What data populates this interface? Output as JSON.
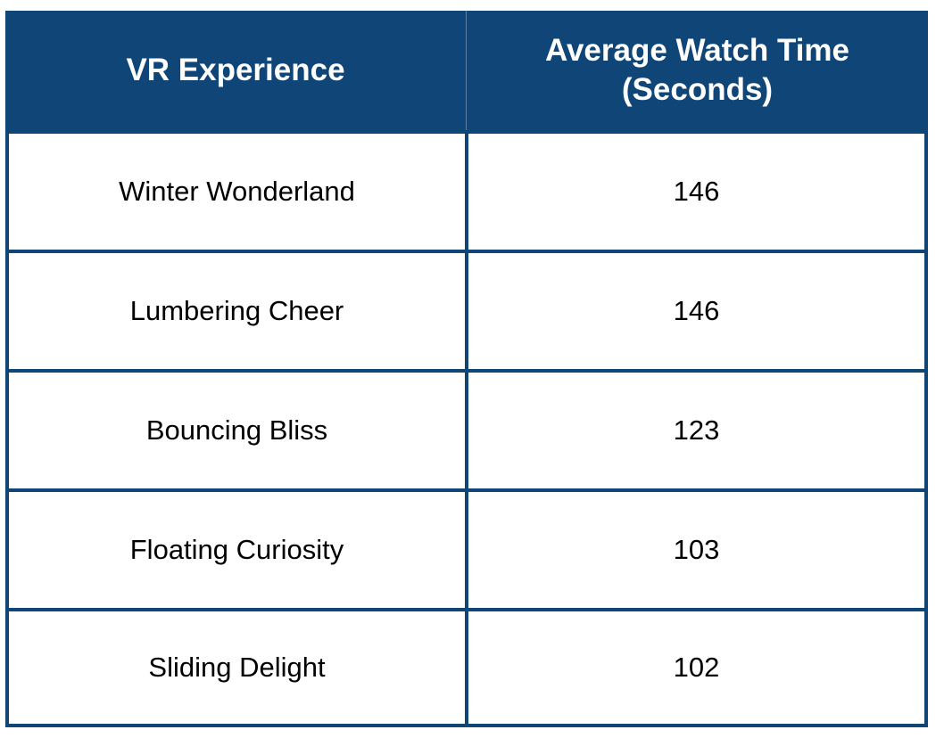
{
  "chart_data": {
    "type": "table",
    "columns": [
      "VR Experience",
      "Average Watch Time\n(Seconds)"
    ],
    "header": {
      "col1": "VR Experience",
      "col2_line1": "Average Watch Time",
      "col2_line2": "(Seconds)"
    },
    "rows": [
      {
        "experience": "Winter Wonderland",
        "watch_time": "146"
      },
      {
        "experience": "Lumbering Cheer",
        "watch_time": "146"
      },
      {
        "experience": "Bouncing Bliss",
        "watch_time": "123"
      },
      {
        "experience": "Floating Curiosity",
        "watch_time": "103"
      },
      {
        "experience": "Sliding Delight",
        "watch_time": "102"
      }
    ],
    "colors": {
      "header_background": "#0f4577",
      "header_text": "#ffffff",
      "cell_background": "#ffffff",
      "cell_text": "#000000",
      "border": "#0f4577"
    }
  }
}
